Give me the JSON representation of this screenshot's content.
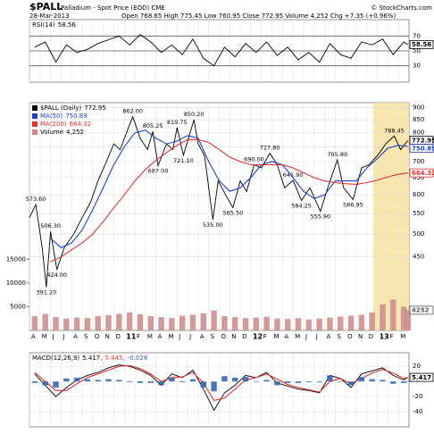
{
  "header": {
    "symbol": "$PALL",
    "name": "Palladium - Spot Price (EOD) CME",
    "credit": "© StockCharts.com",
    "date": "28-Mar-2013",
    "quote": "Open 768.65 High 775.45 Low 760.95 Close 772.95 Volume 4,252 Chg +7.35 (+0.96%)"
  },
  "chart_data": [
    {
      "type": "line",
      "xlim": [
        0,
        36
      ],
      "ylim": [
        8,
        92
      ],
      "yticks": [
        30,
        50,
        70
      ],
      "series": [
        {
          "name": "RSI(14)",
          "color": "#000000",
          "x": [
            0.5,
            1.5,
            2.5,
            3.5,
            4.5,
            5.5,
            6.5,
            7.5,
            8.5,
            9.5,
            10.5,
            11.5,
            12.5,
            13.5,
            14.5,
            15.5,
            16.5,
            17.5,
            18.5,
            19.5,
            20.5,
            21.5,
            22.5,
            23.5,
            24.5,
            25.5,
            26.5,
            27.5,
            28.5,
            29.5,
            30.5,
            31.5,
            32.5,
            33.5,
            34.5,
            35.5,
            35.9
          ],
          "values": [
            55,
            62,
            35,
            58,
            48,
            52,
            60,
            65,
            70,
            58,
            72,
            62,
            48,
            58,
            45,
            66,
            40,
            30,
            55,
            42,
            60,
            48,
            62,
            44,
            55,
            38,
            48,
            35,
            60,
            45,
            40,
            62,
            58,
            66,
            45,
            62,
            58.56
          ]
        }
      ]
    },
    {
      "type": "line",
      "log": true,
      "xlim": [
        0,
        36
      ],
      "ylim": [
        320,
        920
      ],
      "yticks": [
        450,
        500,
        550,
        600,
        650,
        700,
        750,
        800,
        850,
        900
      ],
      "y2lim": [
        0,
        48000
      ],
      "y2ticks": [
        5000,
        10000,
        15000
      ],
      "xticks": [
        {
          "value": 0,
          "label": "A"
        },
        {
          "value": 1,
          "label": "M"
        },
        {
          "value": 2,
          "label": "J"
        },
        {
          "value": 3,
          "label": "J"
        },
        {
          "value": 4,
          "label": "A"
        },
        {
          "value": 5,
          "label": "S"
        },
        {
          "value": 6,
          "label": "O"
        },
        {
          "value": 7,
          "label": "N"
        },
        {
          "value": 8,
          "label": "D"
        },
        {
          "value": 9,
          "label": "11"
        },
        {
          "value": 10,
          "label": "F"
        },
        {
          "value": 11,
          "label": "M"
        },
        {
          "value": 12,
          "label": "A"
        },
        {
          "value": 13,
          "label": "M"
        },
        {
          "value": 14,
          "label": "J"
        },
        {
          "value": 15,
          "label": "J"
        },
        {
          "value": 16,
          "label": "A"
        },
        {
          "value": 17,
          "label": "S"
        },
        {
          "value": 18,
          "label": "O"
        },
        {
          "value": 19,
          "label": "N"
        },
        {
          "value": 20,
          "label": "D"
        },
        {
          "value": 21,
          "label": "12"
        },
        {
          "value": 22,
          "label": "F"
        },
        {
          "value": 23,
          "label": "M"
        },
        {
          "value": 24,
          "label": "A"
        },
        {
          "value": 25,
          "label": "M"
        },
        {
          "value": 26,
          "label": "J"
        },
        {
          "value": 27,
          "label": "J"
        },
        {
          "value": 28,
          "label": "A"
        },
        {
          "value": 29,
          "label": "S"
        },
        {
          "value": 30,
          "label": "O"
        },
        {
          "value": 31,
          "label": "N"
        },
        {
          "value": 32,
          "label": "D"
        },
        {
          "value": 33,
          "label": "13"
        },
        {
          "value": 34,
          "label": "F"
        },
        {
          "value": 35,
          "label": "M"
        }
      ],
      "highlight": [
        32.6,
        36
      ],
      "series": [
        {
          "name": "$PALL (Daily)",
          "color": "#000000",
          "x": [
            0,
            0.6,
            1.2,
            1.6,
            2.0,
            2.6,
            3.3,
            4.2,
            5.0,
            5.8,
            6.5,
            7.3,
            8.0,
            8.6,
            9.3,
            9.8,
            10.5,
            11.2,
            11.7,
            12.2,
            13.0,
            13.6,
            14.0,
            14.6,
            15.6,
            16.0,
            16.6,
            17.4,
            17.9,
            18.6,
            19.3,
            20.0,
            20.6,
            21.3,
            22.0,
            22.8,
            23.5,
            24.2,
            25.0,
            25.8,
            26.6,
            27.6,
            28.3,
            29.2,
            29.8,
            30.7,
            31.5,
            32.2,
            33.0,
            33.8,
            34.6,
            35.2,
            35.9
          ],
          "values": [
            540,
            573.6,
            470,
            391.2,
            506.3,
            424,
            470,
            500,
            540,
            580,
            640,
            700,
            760,
            740,
            810,
            862,
            780,
            740,
            805.25,
            687,
            760,
            740,
            819.75,
            721.1,
            850.2,
            760,
            720,
            535,
            640,
            600,
            565.5,
            640,
            610,
            690,
            680,
            727.8,
            690,
            620,
            641.9,
            584.25,
            620,
            555.9,
            620,
            705.8,
            620,
            586.95,
            680,
            690,
            720,
            760,
            788.45,
            740,
            772.95
          ],
          "value_labels": [
            null,
            "573.60",
            null,
            "391.20",
            "506.30",
            "424.00",
            null,
            null,
            null,
            null,
            null,
            null,
            null,
            null,
            null,
            "862.00",
            null,
            null,
            "805.25",
            "687.00",
            null,
            null,
            "819.75",
            "721.10",
            "850.20",
            null,
            null,
            "535.00",
            null,
            null,
            "565.50",
            null,
            null,
            "690.00",
            null,
            "727.80",
            null,
            null,
            "641.90",
            "584.25",
            null,
            "555.90",
            null,
            "705.80",
            null,
            "586.95",
            null,
            null,
            null,
            null,
            "788.45",
            null,
            null
          ]
        },
        {
          "name": "MA(50)",
          "color": "#1f3fbf",
          "x": [
            2,
            3,
            4,
            5,
            6,
            7,
            8,
            9,
            10,
            11,
            12,
            13,
            14,
            15,
            16,
            17,
            18,
            19,
            20,
            21,
            22,
            23,
            24,
            25,
            26,
            27,
            28,
            29,
            30,
            31,
            32,
            33,
            34,
            35,
            35.9
          ],
          "values": [
            490,
            470,
            480,
            510,
            560,
            620,
            690,
            750,
            800,
            810,
            780,
            760,
            770,
            790,
            780,
            700,
            640,
            610,
            620,
            650,
            690,
            700,
            690,
            650,
            610,
            590,
            600,
            640,
            640,
            640,
            680,
            710,
            745,
            755,
            750.89
          ]
        },
        {
          "name": "MA(200)",
          "color": "#e03030",
          "x": [
            2,
            3,
            4,
            5,
            6,
            7,
            8,
            9,
            10,
            11,
            12,
            13,
            14,
            15,
            16,
            17,
            18,
            19,
            20,
            21,
            22,
            23,
            24,
            25,
            26,
            27,
            28,
            29,
            30,
            31,
            32,
            33,
            34,
            35,
            35.9
          ],
          "values": [
            440,
            450,
            465,
            480,
            500,
            530,
            565,
            600,
            640,
            675,
            705,
            730,
            755,
            775,
            775,
            765,
            740,
            715,
            700,
            690,
            690,
            690,
            690,
            680,
            665,
            650,
            640,
            635,
            632,
            630,
            635,
            642,
            652,
            660,
            664.32
          ]
        },
        {
          "name": "Volume",
          "type": "bar",
          "axis": "y2",
          "color": "#c98a8a",
          "last_label": "4,252",
          "x": [
            0.5,
            1.5,
            2.5,
            3.5,
            4.5,
            5.5,
            6.5,
            7.5,
            8.5,
            9.5,
            10.5,
            11.5,
            12.5,
            13.5,
            14.5,
            15.5,
            16.5,
            17.5,
            18.5,
            19.5,
            20.5,
            21.5,
            22.5,
            23.5,
            24.5,
            25.5,
            26.5,
            27.5,
            28.5,
            29.5,
            30.5,
            31.5,
            32.5,
            33.5,
            34.5,
            35.5,
            35.9
          ],
          "values": [
            3000,
            3500,
            2800,
            2500,
            2700,
            2600,
            3000,
            3200,
            3500,
            3800,
            3400,
            3000,
            2800,
            2600,
            3100,
            3300,
            3600,
            4200,
            3000,
            2800,
            2600,
            2700,
            2900,
            2500,
            2400,
            2600,
            2300,
            2500,
            2700,
            2900,
            3100,
            3300,
            3800,
            5500,
            6500,
            5000,
            4252
          ]
        }
      ]
    },
    {
      "type": "line",
      "xlim": [
        0,
        36
      ],
      "ylim": [
        -60,
        38
      ],
      "yticks": [
        -40,
        -20,
        20
      ],
      "legend": [
        "MACD(12,26,9)",
        "5.417,",
        "5.445,",
        "-0.028"
      ],
      "series": [
        {
          "name": "MACD",
          "color": "#000000",
          "x": [
            0.5,
            1.5,
            2.5,
            3.5,
            4.5,
            5.5,
            6.5,
            7.5,
            8.5,
            9.5,
            10.5,
            11.5,
            12.5,
            13.5,
            14.5,
            15.5,
            16.5,
            17.5,
            18.5,
            19.5,
            20.5,
            21.5,
            22.5,
            23.5,
            24.5,
            25.5,
            26.5,
            27.5,
            28.5,
            29.5,
            30.5,
            31.5,
            32.5,
            33.5,
            34.5,
            35.5,
            35.9
          ],
          "values": [
            10,
            -5,
            -20,
            -8,
            2,
            8,
            12,
            18,
            22,
            20,
            15,
            8,
            -5,
            10,
            5,
            15,
            -10,
            -38,
            -15,
            -5,
            8,
            5,
            12,
            -2,
            -6,
            -10,
            -12,
            -15,
            8,
            4,
            -8,
            10,
            14,
            18,
            8,
            2,
            5.417
          ]
        },
        {
          "name": "Signal",
          "color": "#e03030",
          "x": [
            0.5,
            1.5,
            2.5,
            3.5,
            4.5,
            5.5,
            6.5,
            7.5,
            8.5,
            9.5,
            10.5,
            11.5,
            12.5,
            13.5,
            14.5,
            15.5,
            16.5,
            17.5,
            18.5,
            19.5,
            20.5,
            21.5,
            22.5,
            23.5,
            24.5,
            25.5,
            26.5,
            27.5,
            28.5,
            29.5,
            30.5,
            31.5,
            32.5,
            33.5,
            34.5,
            35.5,
            35.9
          ],
          "values": [
            12,
            0,
            -12,
            -12,
            -3,
            5,
            10,
            15,
            20,
            21,
            17,
            10,
            0,
            5,
            6,
            12,
            -2,
            -25,
            -22,
            -10,
            2,
            5,
            10,
            3,
            -4,
            -8,
            -11,
            -14,
            0,
            4,
            -3,
            4,
            11,
            16,
            11,
            4,
            5.445
          ]
        },
        {
          "name": "Histogram",
          "type": "bar",
          "color": "#2a5fa8",
          "x": [
            0.5,
            1.5,
            2.5,
            3.5,
            4.5,
            5.5,
            6.5,
            7.5,
            8.5,
            9.5,
            10.5,
            11.5,
            12.5,
            13.5,
            14.5,
            15.5,
            16.5,
            17.5,
            18.5,
            19.5,
            20.5,
            21.5,
            22.5,
            23.5,
            24.5,
            25.5,
            26.5,
            27.5,
            28.5,
            29.5,
            30.5,
            31.5,
            32.5,
            33.5,
            34.5,
            35.5,
            35.9
          ],
          "values": [
            -2,
            -5,
            -8,
            4,
            5,
            3,
            2,
            3,
            2,
            -1,
            -2,
            -2,
            -5,
            5,
            -1,
            3,
            -8,
            -13,
            7,
            5,
            6,
            0,
            2,
            -5,
            -2,
            -2,
            -1,
            -1,
            8,
            0,
            -5,
            6,
            3,
            2,
            -3,
            -2,
            -0.028
          ]
        }
      ]
    }
  ]
}
